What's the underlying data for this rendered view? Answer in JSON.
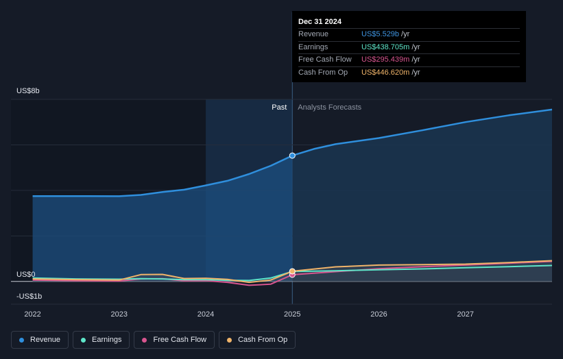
{
  "chart_data": {
    "type": "line",
    "y_axis_labels": {
      "top": "US$8b",
      "zero": "US$0",
      "bottom": "-US$1b"
    },
    "ylim": [
      -1000,
      8000
    ],
    "x_tick_labels": [
      "2022",
      "2023",
      "2024",
      "2025",
      "2026",
      "2027"
    ],
    "x_ticks": [
      2022.0,
      2023.0,
      2024.0,
      2025.0,
      2026.0,
      2027.0
    ],
    "xlim": [
      2021.75,
      2028.0
    ],
    "divider_x": 2025.0,
    "past_label": "Past",
    "forecast_label": "Analysts Forecasts",
    "series": [
      {
        "name": "Revenue",
        "color": "#2f8fdd",
        "points": [
          [
            2022.0,
            3750
          ],
          [
            2022.5,
            3750
          ],
          [
            2023.0,
            3745
          ],
          [
            2023.25,
            3800
          ],
          [
            2023.5,
            3930
          ],
          [
            2023.75,
            4030
          ],
          [
            2024.0,
            4220
          ],
          [
            2024.25,
            4420
          ],
          [
            2024.5,
            4720
          ],
          [
            2024.75,
            5080
          ],
          [
            2025.0,
            5529
          ],
          [
            2025.25,
            5820
          ],
          [
            2025.5,
            6030
          ],
          [
            2026.0,
            6300
          ],
          [
            2026.5,
            6640
          ],
          [
            2027.0,
            7000
          ],
          [
            2027.5,
            7300
          ],
          [
            2028.0,
            7550
          ]
        ]
      },
      {
        "name": "Earnings",
        "color": "#5ee6c9",
        "points": [
          [
            2022.0,
            150
          ],
          [
            2022.5,
            110
          ],
          [
            2023.0,
            100
          ],
          [
            2023.25,
            120
          ],
          [
            2023.5,
            110
          ],
          [
            2023.75,
            75
          ],
          [
            2024.0,
            75
          ],
          [
            2024.25,
            50
          ],
          [
            2024.5,
            40
          ],
          [
            2024.75,
            150
          ],
          [
            2025.0,
            438.7
          ],
          [
            2025.5,
            470
          ],
          [
            2026.0,
            510
          ],
          [
            2026.5,
            550
          ],
          [
            2027.0,
            600
          ],
          [
            2027.5,
            650
          ],
          [
            2028.0,
            700
          ]
        ]
      },
      {
        "name": "Free Cash Flow",
        "color": "#d8558f",
        "points": [
          [
            2022.0,
            60
          ],
          [
            2022.5,
            30
          ],
          [
            2023.0,
            15
          ],
          [
            2023.25,
            110
          ],
          [
            2023.5,
            120
          ],
          [
            2023.75,
            25
          ],
          [
            2024.0,
            35
          ],
          [
            2024.25,
            -40
          ],
          [
            2024.5,
            -170
          ],
          [
            2024.75,
            -120
          ],
          [
            2025.0,
            295.4
          ],
          [
            2025.5,
            430
          ],
          [
            2026.0,
            560
          ],
          [
            2026.5,
            650
          ],
          [
            2027.0,
            720
          ],
          [
            2027.5,
            800
          ],
          [
            2028.0,
            880
          ]
        ]
      },
      {
        "name": "Cash From Op",
        "color": "#f0b46a",
        "points": [
          [
            2022.0,
            110
          ],
          [
            2022.5,
            80
          ],
          [
            2023.0,
            60
          ],
          [
            2023.25,
            300
          ],
          [
            2023.5,
            310
          ],
          [
            2023.75,
            130
          ],
          [
            2024.0,
            140
          ],
          [
            2024.25,
            90
          ],
          [
            2024.5,
            -40
          ],
          [
            2024.75,
            60
          ],
          [
            2025.0,
            446.6
          ],
          [
            2025.5,
            640
          ],
          [
            2026.0,
            720
          ],
          [
            2026.5,
            740
          ],
          [
            2027.0,
            760
          ],
          [
            2027.5,
            830
          ],
          [
            2028.0,
            910
          ]
        ]
      }
    ]
  },
  "tooltip": {
    "date": "Dec 31 2024",
    "rows": [
      {
        "label": "Revenue",
        "value": "US$5.529b",
        "unit": "/yr",
        "color": "#3f94e0"
      },
      {
        "label": "Earnings",
        "value": "US$438.705m",
        "unit": "/yr",
        "color": "#5ee6c9"
      },
      {
        "label": "Free Cash Flow",
        "value": "US$295.439m",
        "unit": "/yr",
        "color": "#d8558f"
      },
      {
        "label": "Cash From Op",
        "value": "US$446.620m",
        "unit": "/yr",
        "color": "#f0b46a"
      }
    ]
  },
  "legend": [
    {
      "label": "Revenue",
      "color": "#2f8fdd"
    },
    {
      "label": "Earnings",
      "color": "#5ee6c9"
    },
    {
      "label": "Free Cash Flow",
      "color": "#d8558f"
    },
    {
      "label": "Cash From Op",
      "color": "#f0b46a"
    }
  ]
}
